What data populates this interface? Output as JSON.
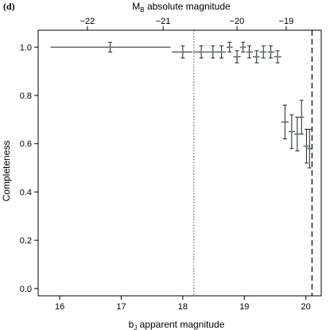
{
  "panel_label": "(d)",
  "chart_data": {
    "type": "scatter",
    "xlabel": {
      "base": "b",
      "sub": "J",
      "rest": " apparent magnitude"
    },
    "ylabel": "Completeness",
    "top_xlabel": {
      "base": "M",
      "sub": "B",
      "rest": " absolute magnitude"
    },
    "xlim": [
      15.65,
      20.25
    ],
    "ylim": [
      -0.03,
      1.07
    ],
    "x_ticks": [
      16,
      17,
      18,
      19,
      20
    ],
    "y_ticks": [
      0.0,
      0.2,
      0.4,
      0.6,
      0.8,
      1.0
    ],
    "top_ticks": [
      {
        "label": "−22",
        "x": 16.45
      },
      {
        "label": "−21",
        "x": 17.68
      },
      {
        "label": "−20",
        "x": 18.88
      },
      {
        "label": "−19",
        "x": 19.68
      }
    ],
    "grid": false,
    "vlines": [
      {
        "x": 18.18,
        "style": "dotted",
        "color": "#3333cc"
      },
      {
        "x": 20.1,
        "style": "dashed",
        "color": "#000000"
      }
    ],
    "points": [
      {
        "x": 16.82,
        "y": 1.0,
        "xlo": 15.85,
        "xhi": 17.8,
        "yerr": 0.02
      },
      {
        "x": 18.0,
        "y": 0.98,
        "xlo": 17.82,
        "xhi": 18.16,
        "yerr": 0.025
      },
      {
        "x": 18.3,
        "y": 0.98,
        "xlo": 18.18,
        "xhi": 18.42,
        "yerr": 0.025
      },
      {
        "x": 18.49,
        "y": 0.98,
        "xlo": 18.42,
        "xhi": 18.58,
        "yerr": 0.025
      },
      {
        "x": 18.63,
        "y": 0.98,
        "xlo": 18.57,
        "xhi": 18.7,
        "yerr": 0.025
      },
      {
        "x": 18.76,
        "y": 1.0,
        "xlo": 18.71,
        "xhi": 18.81,
        "yerr": 0.02
      },
      {
        "x": 18.88,
        "y": 0.96,
        "xlo": 18.82,
        "xhi": 18.94,
        "yerr": 0.025
      },
      {
        "x": 18.98,
        "y": 1.0,
        "xlo": 18.93,
        "xhi": 19.03,
        "yerr": 0.02
      },
      {
        "x": 19.08,
        "y": 0.98,
        "xlo": 19.03,
        "xhi": 19.14,
        "yerr": 0.025
      },
      {
        "x": 19.2,
        "y": 0.96,
        "xlo": 19.14,
        "xhi": 19.25,
        "yerr": 0.025
      },
      {
        "x": 19.31,
        "y": 0.98,
        "xlo": 19.25,
        "xhi": 19.36,
        "yerr": 0.025
      },
      {
        "x": 19.43,
        "y": 0.98,
        "xlo": 19.38,
        "xhi": 19.49,
        "yerr": 0.025
      },
      {
        "x": 19.54,
        "y": 0.96,
        "xlo": 19.48,
        "xhi": 19.6,
        "yerr": 0.025
      },
      {
        "x": 19.66,
        "y": 0.69,
        "xlo": 19.6,
        "xhi": 19.72,
        "yerr": 0.07
      },
      {
        "x": 19.77,
        "y": 0.65,
        "xlo": 19.72,
        "xhi": 19.82,
        "yerr": 0.07
      },
      {
        "x": 19.86,
        "y": 0.64,
        "xlo": 19.81,
        "xhi": 19.91,
        "yerr": 0.07
      },
      {
        "x": 19.93,
        "y": 0.71,
        "xlo": 19.89,
        "xhi": 19.97,
        "yerr": 0.07
      },
      {
        "x": 20.01,
        "y": 0.59,
        "xlo": 19.96,
        "xhi": 20.05,
        "yerr": 0.07
      },
      {
        "x": 20.06,
        "y": 0.58,
        "xlo": 20.02,
        "xhi": 20.1,
        "yerr": 0.08
      }
    ]
  }
}
